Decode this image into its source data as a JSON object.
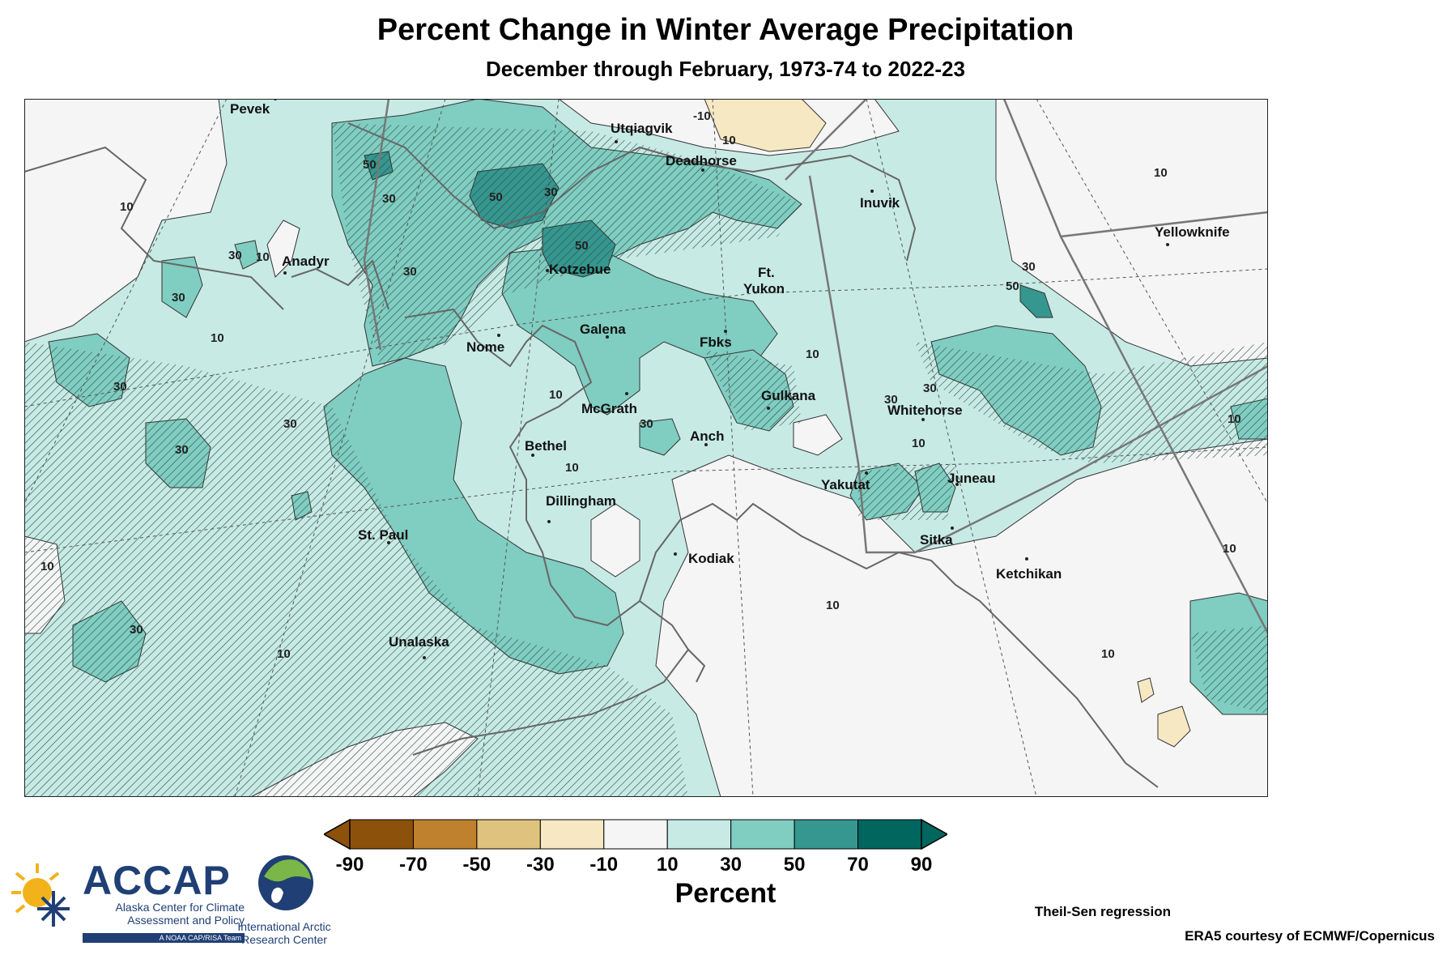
{
  "title": "Percent Change in Winter Average Precipitation",
  "subtitle": "December through February, 1973-74 to 2022-23",
  "colorbar": {
    "label": "Percent",
    "ticks": [
      "-90",
      "-70",
      "-50",
      "-30",
      "-10",
      "10",
      "30",
      "50",
      "70",
      "90"
    ],
    "colors": [
      "#8c510a",
      "#bf812d",
      "#dfc27d",
      "#f6e8c3",
      "#f5f5f5",
      "#c7eae5",
      "#80cdc1",
      "#35978f",
      "#01665e"
    ]
  },
  "contour_labels": [
    "-10",
    "10",
    "30",
    "50"
  ],
  "places": [
    "Pevek",
    "Utqiagvik",
    "Deadhorse",
    "Inuvik",
    "Yellowknife",
    "Anadyr",
    "Kotzebue",
    "Ft.",
    "Yukon",
    "Galena",
    "Nome",
    "Fbks",
    "Gulkana",
    "Whitehorse",
    "McGrath",
    "Bethel",
    "Anch",
    "Juneau",
    "Yakutat",
    "Dillingham",
    "St. Paul",
    "Sitka",
    "Kodiak",
    "Ketchikan",
    "Unalaska"
  ],
  "footer": {
    "method": "Theil-Sen regression",
    "source": "ERA5 courtesy of ECMWF/Copernicus"
  },
  "logos": {
    "accap_name": "ACCAP",
    "accap_line1": "Alaska Center for Climate",
    "accap_line2": "Assessment and Policy",
    "accap_note": "A NOAA CAP/RISA Team",
    "iarc_line1": "International Arctic",
    "iarc_line2": "Research Center"
  }
}
